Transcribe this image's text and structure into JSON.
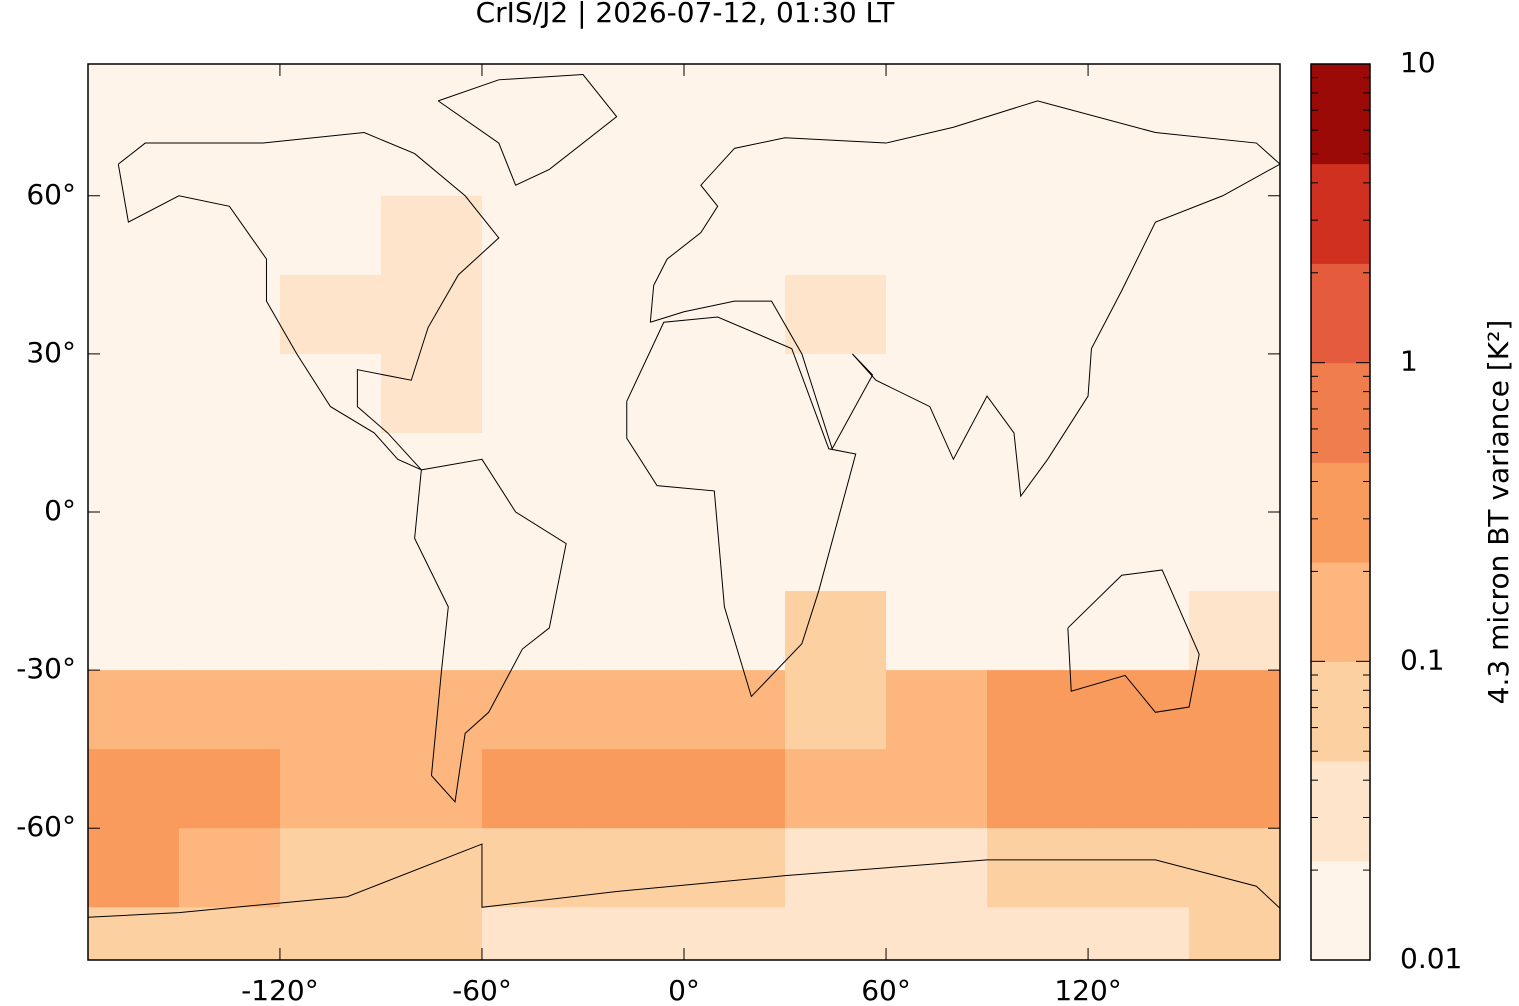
{
  "chart_data": {
    "type": "map-grid",
    "title": "CrIS/J2 | 2026-07-12, 01:30 LT",
    "xlim": [
      -177,
      177
    ],
    "ylim": [
      -85,
      85
    ],
    "xticks": [
      {
        "value": -120,
        "label": "-120°"
      },
      {
        "value": -60,
        "label": "-60°"
      },
      {
        "value": 0,
        "label": "0°"
      },
      {
        "value": 60,
        "label": "60°"
      },
      {
        "value": 120,
        "label": "120°"
      }
    ],
    "yticks": [
      {
        "value": -60,
        "label": "-60°"
      },
      {
        "value": -30,
        "label": "-30°"
      },
      {
        "value": 0,
        "label": "0°"
      },
      {
        "value": 30,
        "label": "30°"
      },
      {
        "value": 60,
        "label": "60°"
      }
    ],
    "lon_edges": [
      -180,
      -150,
      -120,
      -90,
      -60,
      -30,
      0,
      30,
      60,
      90,
      120,
      150,
      180
    ],
    "lat_edges": [
      90,
      75,
      60,
      45,
      30,
      15,
      0,
      -15,
      -30,
      -45,
      -60,
      -75,
      -90
    ],
    "values": [
      [
        0.012,
        0.012,
        0.012,
        0.012,
        0.012,
        0.012,
        0.012,
        0.012,
        0.012,
        0.012,
        0.012,
        0.012
      ],
      [
        0.012,
        0.012,
        0.013,
        0.014,
        0.012,
        0.012,
        0.012,
        0.012,
        0.012,
        0.012,
        0.012,
        0.012
      ],
      [
        0.015,
        0.015,
        0.02,
        0.03,
        0.015,
        0.012,
        0.013,
        0.014,
        0.015,
        0.015,
        0.015,
        0.015
      ],
      [
        0.015,
        0.02,
        0.025,
        0.03,
        0.02,
        0.015,
        0.02,
        0.025,
        0.02,
        0.02,
        0.02,
        0.015
      ],
      [
        0.015,
        0.015,
        0.02,
        0.025,
        0.015,
        0.015,
        0.015,
        0.02,
        0.015,
        0.02,
        0.02,
        0.015
      ],
      [
        0.015,
        0.015,
        0.015,
        0.015,
        0.015,
        0.015,
        0.015,
        0.015,
        0.015,
        0.015,
        0.015,
        0.015
      ],
      [
        0.015,
        0.015,
        0.015,
        0.015,
        0.015,
        0.015,
        0.015,
        0.015,
        0.015,
        0.015,
        0.015,
        0.015
      ],
      [
        0.02,
        0.02,
        0.02,
        0.02,
        0.02,
        0.02,
        0.02,
        0.05,
        0.02,
        0.02,
        0.02,
        0.03
      ],
      [
        0.1,
        0.15,
        0.1,
        0.15,
        0.1,
        0.2,
        0.15,
        0.08,
        0.2,
        0.25,
        0.3,
        0.4
      ],
      [
        0.3,
        0.4,
        0.2,
        0.15,
        0.3,
        0.3,
        0.25,
        0.1,
        0.15,
        0.3,
        0.3,
        0.3
      ],
      [
        0.3,
        0.15,
        0.08,
        0.06,
        0.05,
        0.06,
        0.05,
        0.04,
        0.04,
        0.05,
        0.05,
        0.06
      ],
      [
        0.05,
        0.06,
        0.05,
        0.06,
        0.04,
        0.03,
        0.03,
        0.03,
        0.03,
        0.03,
        0.04,
        0.05
      ]
    ],
    "colorbar_label": "4.3 micron BT variance [K²]",
    "colorbar_scale": "log",
    "colorbar_lim": [
      0.01,
      10
    ],
    "colorbar_ticks": [
      0.01,
      0.1,
      1,
      10
    ],
    "levels": [
      0.01,
      0.0215,
      0.0464,
      0.1,
      0.215,
      0.464,
      1,
      2.15,
      4.64,
      10
    ],
    "colors": [
      "#fef4e9",
      "#fde4ca",
      "#fdd0a2",
      "#fcb67e",
      "#f89b5d",
      "#f07d4d",
      "#e55b3e",
      "#d03020",
      "#9b0a06"
    ]
  }
}
